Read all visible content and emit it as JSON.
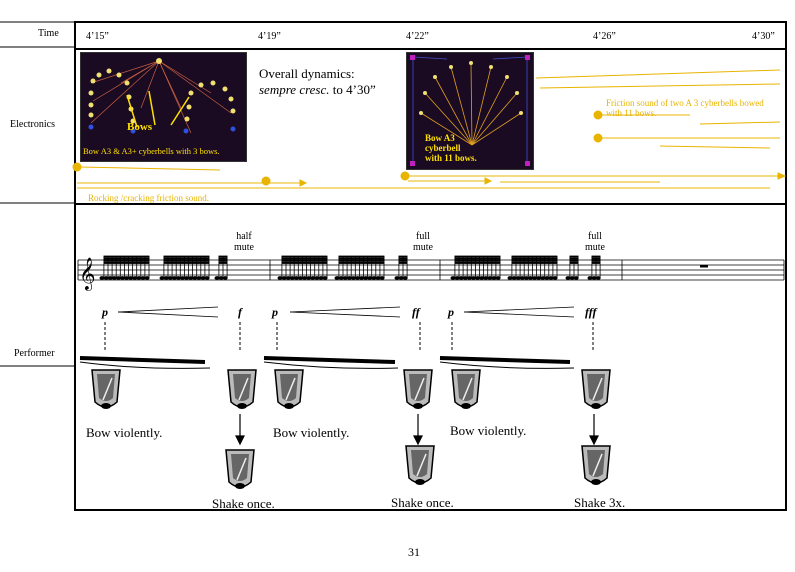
{
  "rows": {
    "time": "Time",
    "electronics": "Electronics",
    "performer": "Performer"
  },
  "times": [
    "4’15”",
    "4’19”",
    "4’22”",
    "4’26”",
    "4’30”"
  ],
  "electronics": {
    "dynamics_line1": "Overall dynamics:",
    "dynamics_line2_italic": "sempre cresc.",
    "dynamics_line2_rest": " to 4’30”",
    "panel1_bows": "Bows",
    "panel1_caption": "Bow A3 & A3+ cyberbells with 3 bows.",
    "panel2_caption_1": "Bow A3",
    "panel2_caption_2": "cyberbell",
    "panel2_caption_3": "with 11 bows.",
    "friction_text": "Friction sound of two A 3 cyberbells bowed with 11 bows.",
    "rocking_text": "Rocking /cracking friction sound."
  },
  "score": {
    "half_mute_1": "half",
    "half_mute_2": "mute",
    "full_mute_a1": "full",
    "full_mute_a2": "mute",
    "full_mute_b1": "full",
    "full_mute_b2": "mute"
  },
  "performer": {
    "dyn_p1": "p",
    "dyn_f": "f",
    "dyn_p2": "p",
    "dyn_ff": "ff",
    "dyn_p3": "p",
    "dyn_fff": "fff",
    "bow1": "Bow violently.",
    "bow2": "Bow violently.",
    "bow3": "Bow violently.",
    "shake1": "Shake once.",
    "shake2": "Shake once.",
    "shake3": "Shake 3x."
  },
  "colors": {
    "accent": "#e8b400",
    "panel_bg": "#1a0a22"
  },
  "page_number": "31"
}
